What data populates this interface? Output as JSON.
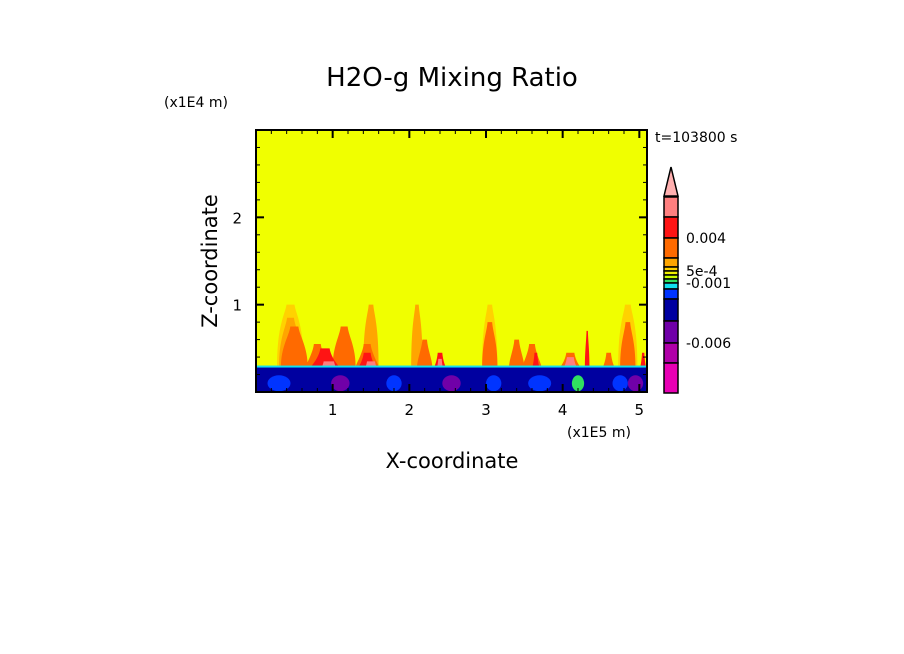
{
  "chart_data": {
    "type": "heatmap",
    "title": "H2O-g Mixing Ratio",
    "xlabel": "X-coordinate",
    "ylabel": "Z-coordinate",
    "x_unit": "(x1E5 m)",
    "y_unit": "(x1E4 m)",
    "time_label": "t=103800 s",
    "xlim": [
      0,
      5.1
    ],
    "ylim": [
      0,
      3.0
    ],
    "xticks": [
      "1",
      "2",
      "3",
      "4",
      "5"
    ],
    "xtick_values": [
      1,
      2,
      3,
      4,
      5
    ],
    "yticks": [
      "1",
      "2"
    ],
    "ytick_values": [
      1,
      2
    ],
    "colorbar": {
      "colors": [
        "#ff7f7f",
        "#ff1414",
        "#ff6a00",
        "#ffa500",
        "#ffd200",
        "#f0f000",
        "#c8ff00",
        "#30e060",
        "#10e0f0",
        "#0034ff",
        "#0000a0",
        "#7000a8",
        "#b000a8",
        "#e800b4"
      ],
      "extend_color": "#ffb0b0",
      "labels": [
        {
          "text": "0.004",
          "index": 2
        },
        {
          "text": "5e-4",
          "index": 5
        },
        {
          "text": "-0.001",
          "index": 8
        },
        {
          "text": "-0.006",
          "index": 12
        }
      ]
    },
    "background_color": "#f0ff00",
    "lower_layer": {
      "z_top": 0.28,
      "color": "#0000a0"
    },
    "plumes": [
      {
        "x": 0.45,
        "w": 0.35,
        "z": 1.0,
        "color": "#ffd200"
      },
      {
        "x": 0.45,
        "w": 0.3,
        "z": 0.85,
        "color": "#ffa500"
      },
      {
        "x": 0.5,
        "w": 0.35,
        "z": 0.75,
        "color": "#ff6a00"
      },
      {
        "x": 0.8,
        "w": 0.3,
        "z": 0.55,
        "color": "#ff6a00"
      },
      {
        "x": 1.15,
        "w": 0.3,
        "z": 0.75,
        "color": "#ff6a00"
      },
      {
        "x": 0.9,
        "w": 0.4,
        "z": 0.5,
        "color": "#ff1414"
      },
      {
        "x": 0.95,
        "w": 0.45,
        "z": 0.35,
        "color": "#ff7f7f"
      },
      {
        "x": 1.5,
        "w": 0.2,
        "z": 1.0,
        "color": "#ffa500"
      },
      {
        "x": 1.45,
        "w": 0.3,
        "z": 0.55,
        "color": "#ff6a00"
      },
      {
        "x": 1.45,
        "w": 0.3,
        "z": 0.45,
        "color": "#ff1414"
      },
      {
        "x": 1.5,
        "w": 0.35,
        "z": 0.35,
        "color": "#ff7f7f"
      },
      {
        "x": 2.1,
        "w": 0.15,
        "z": 1.0,
        "color": "#ffa500"
      },
      {
        "x": 2.2,
        "w": 0.2,
        "z": 0.6,
        "color": "#ff6a00"
      },
      {
        "x": 2.4,
        "w": 0.2,
        "z": 0.45,
        "color": "#ff1414"
      },
      {
        "x": 2.4,
        "w": 0.15,
        "z": 0.38,
        "color": "#ff7f7f"
      },
      {
        "x": 3.05,
        "w": 0.2,
        "z": 1.0,
        "color": "#ffd200"
      },
      {
        "x": 3.05,
        "w": 0.2,
        "z": 0.8,
        "color": "#ff6a00"
      },
      {
        "x": 3.4,
        "w": 0.2,
        "z": 0.6,
        "color": "#ff6a00"
      },
      {
        "x": 3.6,
        "w": 0.25,
        "z": 0.55,
        "color": "#ff6a00"
      },
      {
        "x": 3.65,
        "w": 0.12,
        "z": 0.45,
        "color": "#ff1414"
      },
      {
        "x": 4.1,
        "w": 0.35,
        "z": 0.45,
        "color": "#ff6a00"
      },
      {
        "x": 4.1,
        "w": 0.3,
        "z": 0.4,
        "color": "#ff7f7f"
      },
      {
        "x": 4.32,
        "w": 0.06,
        "z": 0.7,
        "color": "#ff1414"
      },
      {
        "x": 4.6,
        "w": 0.2,
        "z": 0.45,
        "color": "#ff6a00"
      },
      {
        "x": 4.85,
        "w": 0.25,
        "z": 1.0,
        "color": "#ffd200"
      },
      {
        "x": 4.85,
        "w": 0.2,
        "z": 0.8,
        "color": "#ff6a00"
      },
      {
        "x": 5.05,
        "w": 0.1,
        "z": 0.45,
        "color": "#ff1414"
      }
    ]
  }
}
